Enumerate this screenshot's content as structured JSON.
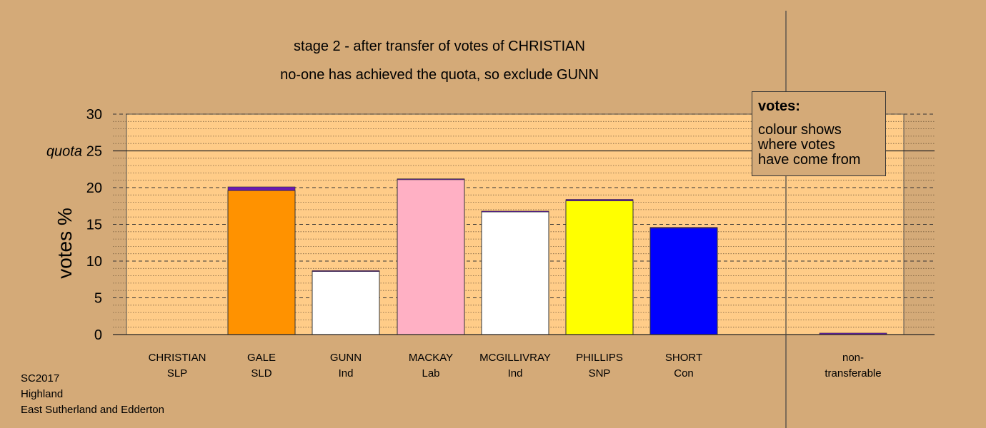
{
  "titles": {
    "line1": "stage 2 - after transfer of votes of CHRISTIAN",
    "line2": "no-one has achieved the quota, so exclude GUNN"
  },
  "legend": {
    "title": "votes:",
    "lines": [
      "colour shows",
      "where votes",
      "have come from"
    ]
  },
  "footer": [
    "SC2017",
    "Highland",
    "East Sutherland and Edderton"
  ],
  "colors": {
    "background": "#d4aa78",
    "plot_area": "#ffcc88",
    "SLP": "#8b1a8b",
    "SLD": "#ff9200",
    "Ind": "#ffffff",
    "Lab": "#ffb0c4",
    "SNP": "#ffff00",
    "Con": "#0000ff",
    "transfer_from_CHRISTIAN": "#6a1ab0"
  },
  "chart_data": {
    "type": "bar",
    "ylabel": "votes %",
    "ylim": [
      0,
      30
    ],
    "yticks": [
      0,
      5,
      10,
      15,
      20,
      25,
      30
    ],
    "quota": 25,
    "quota_label": "quota",
    "grid": "dotted minor lines every 1, dashed major lines every 5",
    "candidates": [
      {
        "name": "CHRISTIAN",
        "party": "SLP",
        "base": 0,
        "transfer": 0
      },
      {
        "name": "GALE",
        "party": "SLD",
        "base": 19.6,
        "transfer": 0.5
      },
      {
        "name": "GUNN",
        "party": "Ind",
        "base": 8.6,
        "transfer": 0.1
      },
      {
        "name": "MACKAY",
        "party": "Lab",
        "base": 21.1,
        "transfer": 0.1
      },
      {
        "name": "MCGILLIVRAY",
        "party": "Ind",
        "base": 16.7,
        "transfer": 0.1
      },
      {
        "name": "PHILLIPS",
        "party": "SNP",
        "base": 18.2,
        "transfer": 0.2
      },
      {
        "name": "SHORT",
        "party": "Con",
        "base": 14.5,
        "transfer": 0.1
      }
    ],
    "nontransferable": {
      "label_line1": "non-",
      "label_line2": "transferable",
      "value": 0.2
    }
  }
}
